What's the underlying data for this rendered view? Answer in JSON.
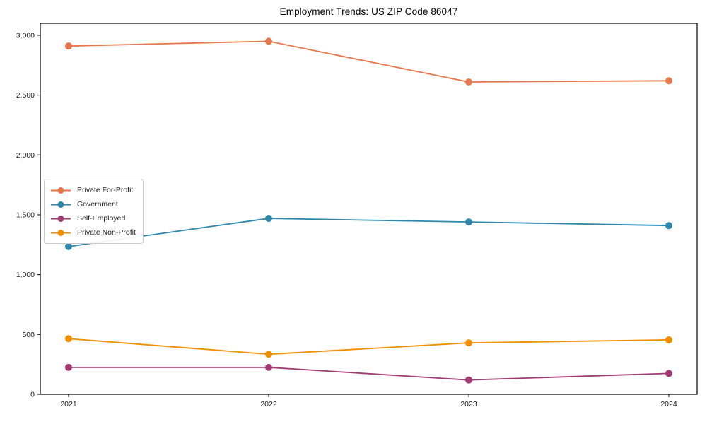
{
  "chart_data": {
    "type": "line",
    "title": "Employment Trends: US ZIP Code 86047",
    "categories": [
      "2021",
      "2022",
      "2023",
      "2024"
    ],
    "series": [
      {
        "name": "Private For-Profit",
        "color": "#e8764c",
        "values": [
          2910,
          2950,
          2610,
          2620
        ]
      },
      {
        "name": "Government",
        "color": "#2e86ab",
        "values": [
          1235,
          1470,
          1440,
          1410
        ]
      },
      {
        "name": "Self-Employed",
        "color": "#a23b72",
        "values": [
          225,
          225,
          120,
          175
        ]
      },
      {
        "name": "Private Non-Profit",
        "color": "#f18f01",
        "values": [
          465,
          335,
          430,
          455
        ]
      }
    ],
    "ylim": [
      0,
      3100
    ],
    "yticks": [
      0,
      500,
      1000,
      1500,
      2000,
      2500,
      3000
    ],
    "ytick_labels": [
      "0",
      "500",
      "1,000",
      "1,500",
      "2,000",
      "2,500",
      "3,000"
    ],
    "xlabel": "",
    "ylabel": "",
    "grid": false,
    "legend_position": "center left",
    "marker": "circle"
  }
}
